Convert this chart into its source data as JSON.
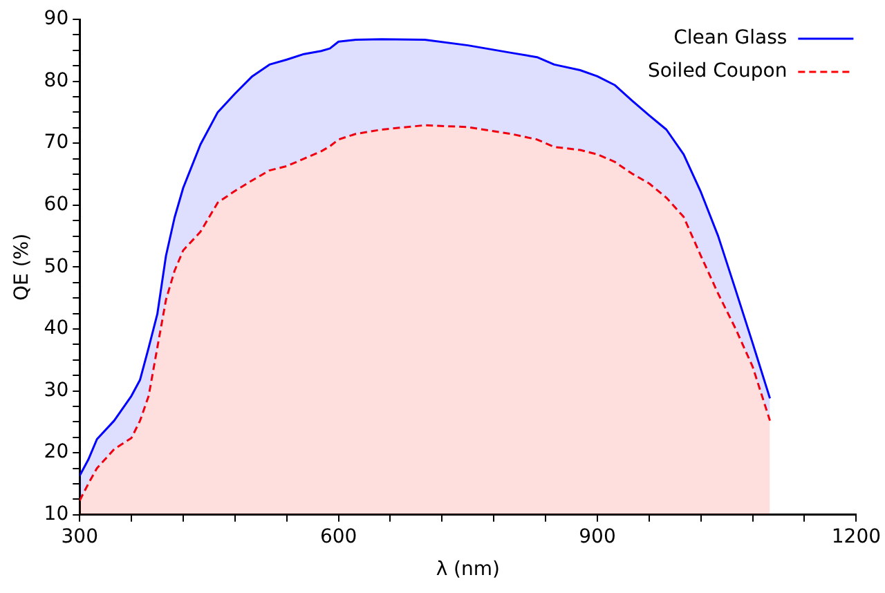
{
  "chart_data": {
    "type": "area",
    "xlabel": "λ (nm)",
    "ylabel": "QE (%)",
    "x": [
      300,
      310,
      320,
      340,
      360,
      370,
      380,
      390,
      400,
      410,
      420,
      440,
      460,
      480,
      500,
      520,
      540,
      560,
      580,
      590,
      600,
      620,
      650,
      700,
      750,
      800,
      830,
      850,
      880,
      900,
      920,
      940,
      960,
      980,
      1000,
      1020,
      1040,
      1060,
      1080,
      1100
    ],
    "series": [
      {
        "name": "Clean Glass",
        "color": "#0000ff",
        "line_style": "solid",
        "values": [
          16.3,
          18.9,
          22.2,
          25.2,
          29.2,
          31.8,
          37,
          42.4,
          51.8,
          58,
          62.8,
          69.8,
          75,
          78,
          80.8,
          82.7,
          83.5,
          84.4,
          84.9,
          85.3,
          86.4,
          86.7,
          86.8,
          86.7,
          85.8,
          84.6,
          83.9,
          82.7,
          81.8,
          80.8,
          79.4,
          76.9,
          74.5,
          72.2,
          68.2,
          62.1,
          55,
          46.4,
          37.7,
          28.8
        ]
      },
      {
        "name": "Soiled Coupon",
        "color": "#ff0000",
        "line_style": "dashed",
        "values": [
          12.3,
          15,
          17.5,
          20.6,
          22.4,
          25.2,
          29.2,
          37,
          44.7,
          49.4,
          52.7,
          55.7,
          60.4,
          62.3,
          64,
          65.6,
          66.3,
          67.5,
          68.7,
          69.5,
          70.6,
          71.5,
          72.2,
          72.9,
          72.6,
          71.5,
          70.6,
          69.4,
          68.9,
          68.2,
          67,
          65.1,
          63.5,
          61.2,
          58.1,
          51.8,
          45.7,
          40.1,
          33.9,
          25.2
        ]
      }
    ],
    "xlim": [
      300,
      1200
    ],
    "xticks": [
      300,
      {
        "value": 360,
        "label": null
      },
      {
        "value": 420,
        "label": null
      },
      {
        "value": 480,
        "label": null
      },
      {
        "value": 540,
        "label": null
      },
      600,
      {
        "value": 660,
        "label": null
      },
      {
        "value": 720,
        "label": null
      },
      {
        "value": 780,
        "label": null
      },
      {
        "value": 840,
        "label": null
      },
      900,
      {
        "value": 960,
        "label": null
      },
      {
        "value": 1020,
        "label": null
      },
      {
        "value": 1080,
        "label": null
      },
      {
        "value": 1140,
        "label": null
      },
      1200
    ],
    "ylim": [
      10,
      90
    ],
    "yticks": [
      10,
      {
        "value": 12.5,
        "label": null
      },
      {
        "value": 15,
        "label": null
      },
      {
        "value": 17.5,
        "label": null
      },
      20,
      {
        "value": 22.5,
        "label": null
      },
      {
        "value": 25,
        "label": null
      },
      {
        "value": 27.5,
        "label": null
      },
      30,
      {
        "value": 32.5,
        "label": null
      },
      {
        "value": 35,
        "label": null
      },
      {
        "value": 37.5,
        "label": null
      },
      40,
      {
        "value": 42.5,
        "label": null
      },
      {
        "value": 45,
        "label": null
      },
      {
        "value": 47.5,
        "label": null
      },
      50,
      {
        "value": 52.5,
        "label": null
      },
      {
        "value": 55,
        "label": null
      },
      {
        "value": 57.5,
        "label": null
      },
      60,
      {
        "value": 62.5,
        "label": null
      },
      {
        "value": 65,
        "label": null
      },
      {
        "value": 67.5,
        "label": null
      },
      70,
      {
        "value": 72.5,
        "label": null
      },
      {
        "value": 75,
        "label": null
      },
      {
        "value": 77.5,
        "label": null
      },
      80,
      {
        "value": 82.5,
        "label": null
      },
      {
        "value": 85,
        "label": null
      },
      {
        "value": 87.5,
        "label": null
      },
      90
    ],
    "grid": false,
    "legend": "top right",
    "marker": "none"
  }
}
